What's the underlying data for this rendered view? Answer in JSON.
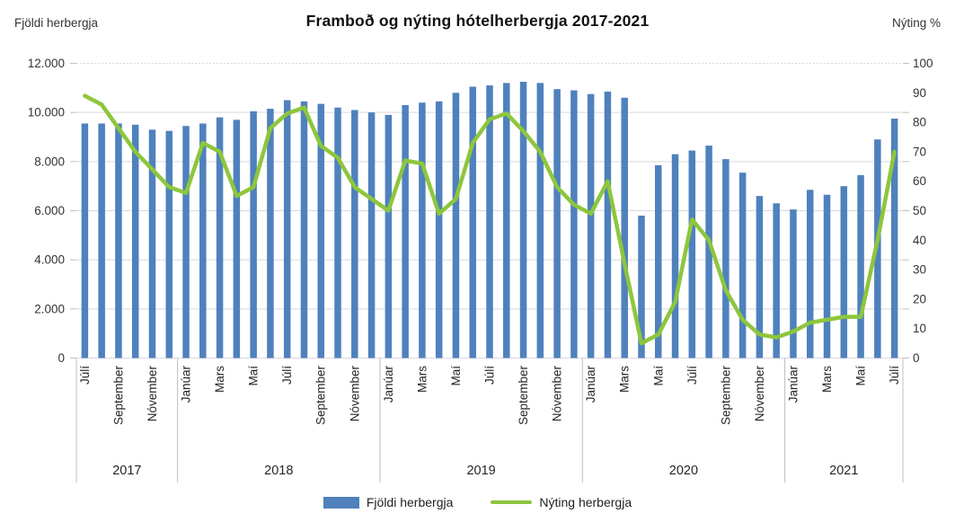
{
  "title": "Framboð og nýting hótelherbergja 2017-2021",
  "left_axis": {
    "title": "Fjöldi herbergja",
    "max": 12000,
    "ticks": [
      {
        "value": 0,
        "label": "0"
      },
      {
        "value": 2000,
        "label": "2.000"
      },
      {
        "value": 4000,
        "label": "4.000"
      },
      {
        "value": 6000,
        "label": "6.000"
      },
      {
        "value": 8000,
        "label": "8.000"
      },
      {
        "value": 10000,
        "label": "10.000"
      },
      {
        "value": 12000,
        "label": "12.000"
      }
    ]
  },
  "right_axis": {
    "title": "Nýting %",
    "max": 100,
    "ticks": [
      {
        "value": 0,
        "label": "0"
      },
      {
        "value": 10,
        "label": "10"
      },
      {
        "value": 20,
        "label": "20"
      },
      {
        "value": 30,
        "label": "30"
      },
      {
        "value": 40,
        "label": "40"
      },
      {
        "value": 50,
        "label": "50"
      },
      {
        "value": 60,
        "label": "60"
      },
      {
        "value": 70,
        "label": "70"
      },
      {
        "value": 80,
        "label": "80"
      },
      {
        "value": 90,
        "label": "90"
      },
      {
        "value": 100,
        "label": "100"
      }
    ]
  },
  "legend": {
    "rooms_label": "Fjöldi herbergja",
    "utilization_label": "Nýting herbergja"
  },
  "colors": {
    "bar": "#4f81bd",
    "line": "#8dc63c",
    "gridline": "#d9d9d9",
    "divider": "#bfbfbf",
    "text": "#333333"
  },
  "chart_data": {
    "type": "bar+line",
    "x_unit": "month",
    "span": "Júlí 2017 - Júlí 2021",
    "left_max": 12000,
    "right_max": 100,
    "x_tick_labels": [
      {
        "i": 0,
        "label": "Júlí"
      },
      {
        "i": 2,
        "label": "September"
      },
      {
        "i": 4,
        "label": "Nóvember"
      },
      {
        "i": 6,
        "label": "Janúar"
      },
      {
        "i": 8,
        "label": "Mars"
      },
      {
        "i": 10,
        "label": "Maí"
      },
      {
        "i": 12,
        "label": "Júlí"
      },
      {
        "i": 14,
        "label": "September"
      },
      {
        "i": 16,
        "label": "Nóvember"
      },
      {
        "i": 18,
        "label": "Janúar"
      },
      {
        "i": 20,
        "label": "Mars"
      },
      {
        "i": 22,
        "label": "Maí"
      },
      {
        "i": 24,
        "label": "Júlí"
      },
      {
        "i": 26,
        "label": "September"
      },
      {
        "i": 28,
        "label": "Nóvember"
      },
      {
        "i": 30,
        "label": "Janúar"
      },
      {
        "i": 32,
        "label": "Mars"
      },
      {
        "i": 34,
        "label": "Maí"
      },
      {
        "i": 36,
        "label": "Júlí"
      },
      {
        "i": 38,
        "label": "September"
      },
      {
        "i": 40,
        "label": "Nóvember"
      },
      {
        "i": 42,
        "label": "Janúar"
      },
      {
        "i": 44,
        "label": "Mars"
      },
      {
        "i": 46,
        "label": "Maí"
      },
      {
        "i": 48,
        "label": "Júlí"
      }
    ],
    "year_bands": [
      {
        "label": "2017",
        "from": 0,
        "to": 6
      },
      {
        "label": "2018",
        "from": 6,
        "to": 18
      },
      {
        "label": "2019",
        "from": 18,
        "to": 30
      },
      {
        "label": "2020",
        "from": 30,
        "to": 42
      },
      {
        "label": "2021",
        "from": 42,
        "to": 49
      }
    ],
    "series": [
      {
        "name": "Fjöldi herbergja",
        "type": "bar",
        "axis": "left",
        "values": [
          9550,
          9550,
          9550,
          9500,
          9300,
          9250,
          9450,
          9550,
          9800,
          9700,
          10050,
          10150,
          10500,
          10450,
          10350,
          10200,
          10100,
          10000,
          9900,
          10300,
          10400,
          10450,
          10800,
          11050,
          11100,
          11200,
          11250,
          11200,
          10950,
          10900,
          10750,
          10850,
          10600,
          5800,
          7850,
          8300,
          8450,
          8650,
          8100,
          7550,
          6600,
          6300,
          6050,
          6850,
          6650,
          7000,
          7450,
          8900,
          9750
        ]
      },
      {
        "name": "Nýting herbergja",
        "type": "line",
        "axis": "right",
        "values": [
          89,
          86,
          78,
          70,
          64,
          58,
          56,
          73,
          70,
          55,
          58,
          78,
          83,
          85,
          72,
          68,
          58,
          54,
          50,
          67,
          66,
          49,
          54,
          73,
          81,
          83,
          77,
          70,
          58,
          52,
          49,
          60,
          32,
          5,
          8,
          19,
          47,
          40,
          23,
          13,
          8,
          7,
          9,
          12,
          13,
          14,
          14,
          40,
          70
        ]
      }
    ]
  }
}
